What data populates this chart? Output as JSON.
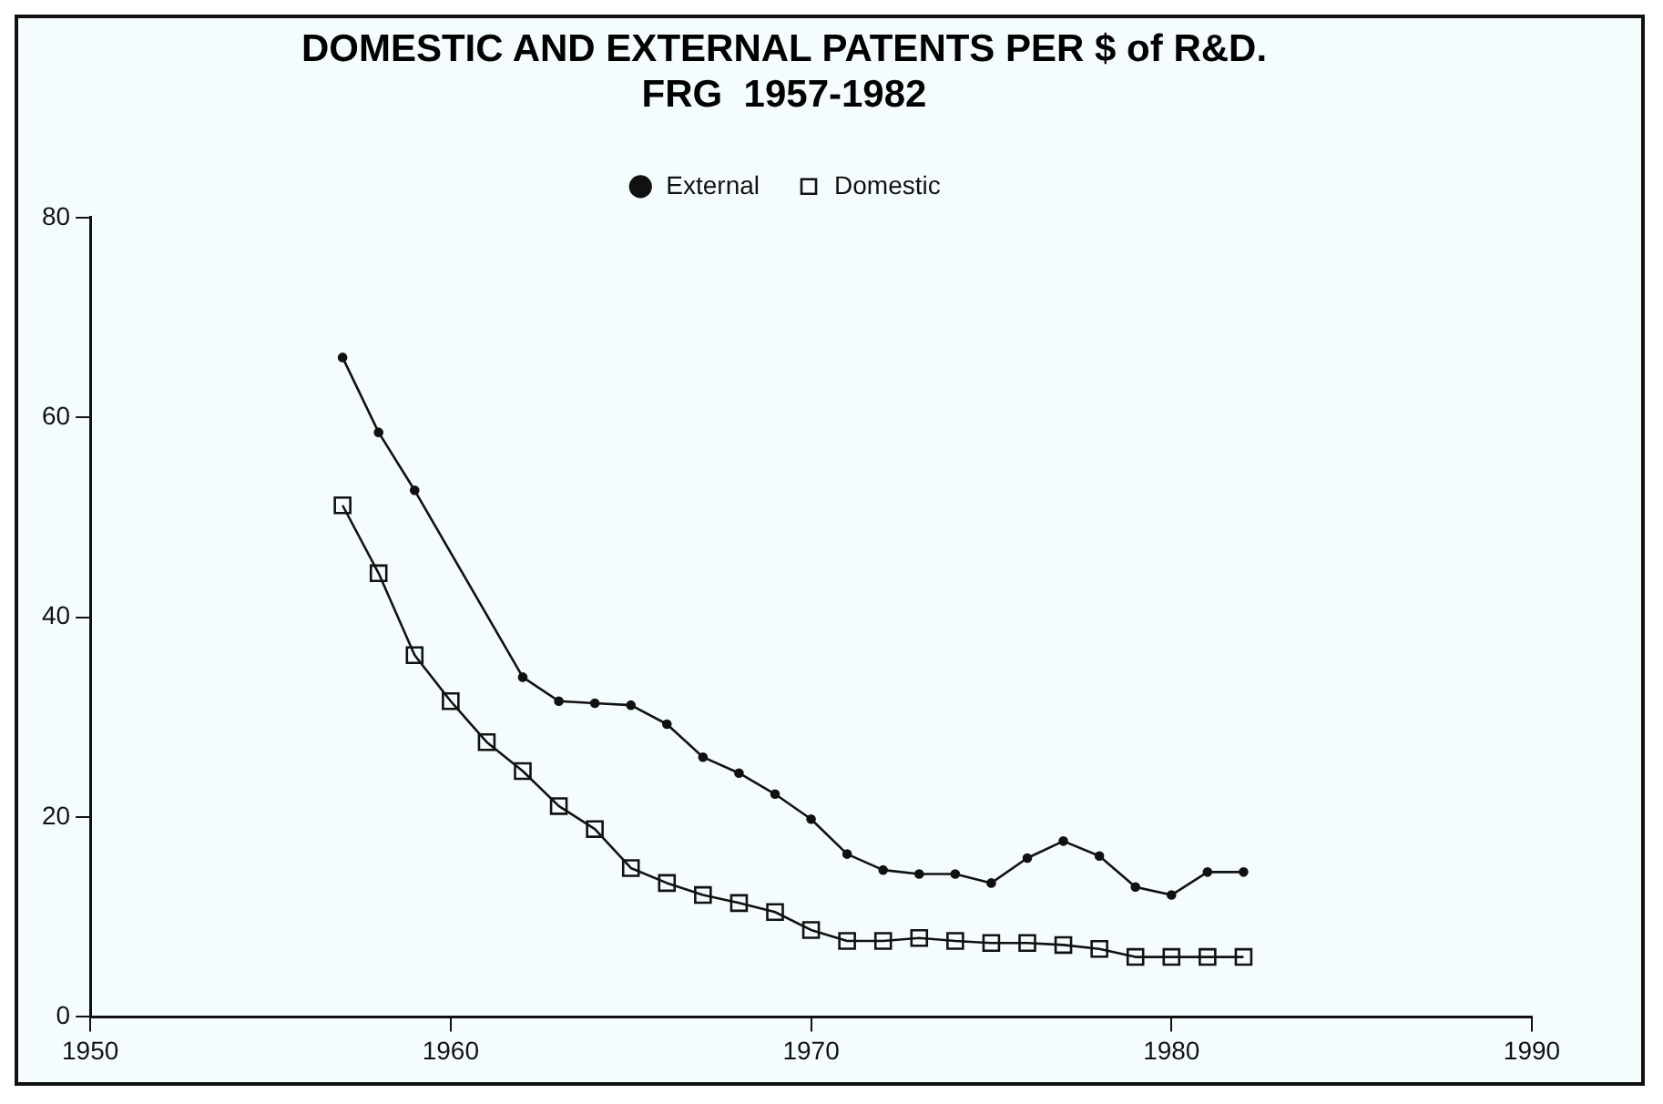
{
  "chart_data": {
    "type": "line",
    "title": [
      "DOMESTIC AND EXTERNAL PATENTS PER $ of R&D.",
      "FRG  1957-1982"
    ],
    "series": [
      {
        "name": "External",
        "color": "#111111",
        "marker": "circle",
        "x": [
          1957,
          1958,
          1959,
          1962,
          1963,
          1964,
          1965,
          1966,
          1967,
          1968,
          1969,
          1970,
          1971,
          1972,
          1973,
          1974,
          1975,
          1976,
          1977,
          1978,
          1979,
          1980,
          1981,
          1982
        ],
        "values": [
          66,
          58.5,
          52.7,
          34,
          31.6,
          31.4,
          31.2,
          29.3,
          26,
          24.4,
          22.3,
          19.8,
          16.3,
          14.7,
          14.3,
          14.3,
          13.4,
          15.9,
          17.6,
          16.1,
          13,
          12.2,
          14.5,
          14.5
        ]
      },
      {
        "name": "Domestic",
        "color": "#111111",
        "marker": "square",
        "x": [
          1957,
          1958,
          1959,
          1960,
          1961,
          1962,
          1963,
          1964,
          1965,
          1966,
          1967,
          1968,
          1969,
          1970,
          1971,
          1972,
          1973,
          1974,
          1975,
          1976,
          1977,
          1978,
          1979,
          1980,
          1981,
          1982
        ],
        "values": [
          51.2,
          44.4,
          36.2,
          31.6,
          27.5,
          24.6,
          21.1,
          18.8,
          14.9,
          13.4,
          12.2,
          11.4,
          10.5,
          8.7,
          7.6,
          7.6,
          7.9,
          7.6,
          7.4,
          7.4,
          7.2,
          6.8,
          6,
          6,
          6,
          6
        ]
      }
    ],
    "xlim": [
      1950,
      1990
    ],
    "xticks": [
      1950,
      1960,
      1970,
      1980,
      1990
    ],
    "ylim": [
      0,
      80
    ],
    "yticks": [
      0,
      20,
      40,
      60,
      80
    ],
    "grid": false,
    "legend": "top"
  }
}
